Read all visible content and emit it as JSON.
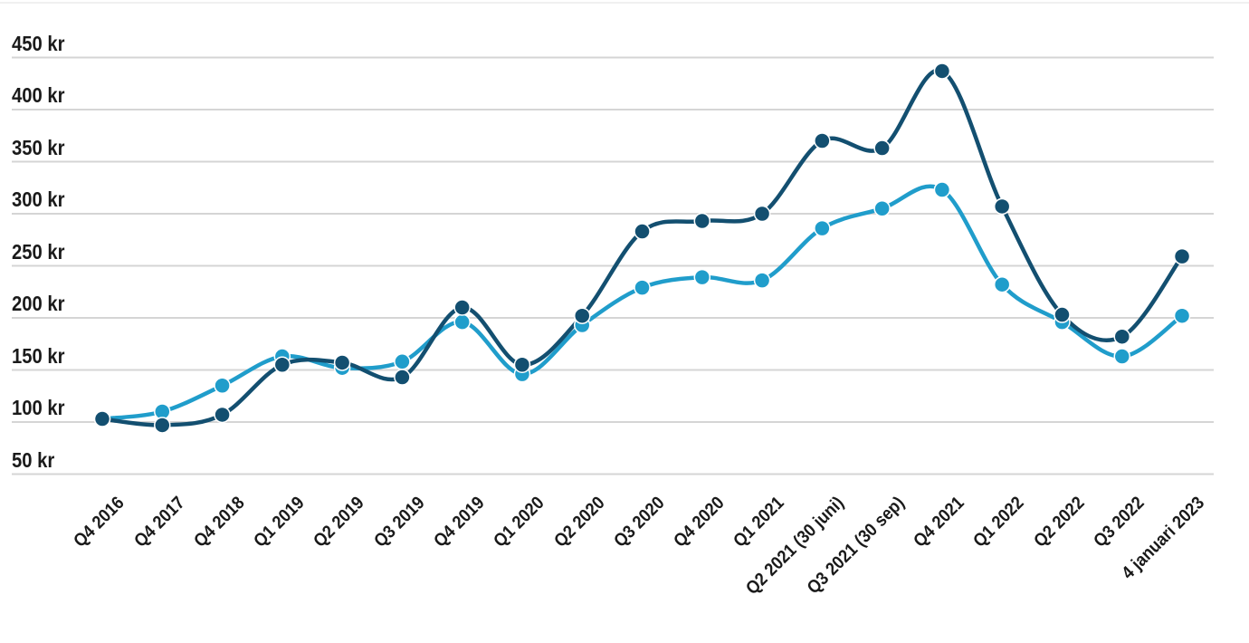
{
  "chart_data": {
    "type": "line",
    "title": "",
    "xlabel": "",
    "ylabel": "",
    "currency_suffix": "kr",
    "grid": true,
    "legend_position": "none",
    "ylim": [
      50,
      475
    ],
    "y_ticks": [
      {
        "value": 50,
        "label": "50 kr"
      },
      {
        "value": 100,
        "label": "100 kr"
      },
      {
        "value": 150,
        "label": "150 kr"
      },
      {
        "value": 200,
        "label": "200 kr"
      },
      {
        "value": 250,
        "label": "250 kr"
      },
      {
        "value": 300,
        "label": "300 kr"
      },
      {
        "value": 350,
        "label": "350 kr"
      },
      {
        "value": 400,
        "label": "400 kr"
      },
      {
        "value": 450,
        "label": "450 kr"
      }
    ],
    "categories": [
      "Q4 2016",
      "Q4 2017",
      "Q4 2018",
      "Q1 2019",
      "Q2 2019",
      "Q3 2019",
      "Q4 2019",
      "Q1 2020",
      "Q2 2020",
      "Q3 2020",
      "Q4 2020",
      "Q1 2021",
      "Q2 2021 (30 juni)",
      "Q3 2021 (30 sep)",
      "Q4 2021",
      "Q1 2022",
      "Q2 2022",
      "Q3 2022",
      "4 januari 2023"
    ],
    "series": [
      {
        "name": "dark-blue-series",
        "color": "#134F70",
        "values": [
          103,
          97,
          107,
          155,
          157,
          143,
          210,
          155,
          202,
          283,
          293,
          300,
          370,
          363,
          437,
          307,
          203,
          182,
          259
        ]
      },
      {
        "name": "light-blue-series",
        "color": "#209DCB",
        "values": [
          103,
          110,
          135,
          163,
          152,
          158,
          196,
          146,
          193,
          229,
          239,
          236,
          286,
          305,
          323,
          232,
          196,
          163,
          202
        ]
      }
    ]
  },
  "colors": {
    "background": "#ffffff",
    "gridline": "#d5d5d5",
    "axis_text": "#1a1a1a",
    "top_divider": "#f0f0f0",
    "dot_outline": "#ffffff"
  }
}
